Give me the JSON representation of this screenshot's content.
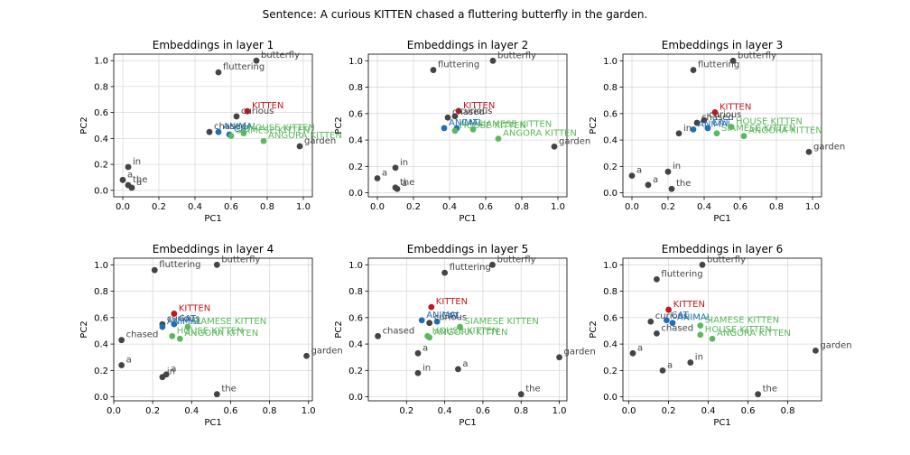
{
  "suptitle": "Sentence: A curious KITTEN chased a fluttering butterfly in the garden.",
  "colors": {
    "word": "#444444",
    "kitten": "#c4161c",
    "animal": "#1f6fb4",
    "breed": "#5cb85c"
  },
  "chart_data": [
    {
      "type": "scatter",
      "title": "Embeddings in layer 1",
      "xlabel": "PC1",
      "ylabel": "PC2",
      "xlim": [
        -0.05,
        1.05
      ],
      "ylim": [
        -0.05,
        1.05
      ],
      "xticks": [
        "0.0",
        "0.2",
        "0.4",
        "0.6",
        "0.8",
        "1.0"
      ],
      "xtick_values": [
        0,
        0.2,
        0.4,
        0.6,
        0.8,
        1.0
      ],
      "yticks": [
        "0.0",
        "0.2",
        "0.4",
        "0.6",
        "0.8",
        "1.0"
      ],
      "ytick_values": [
        0,
        0.2,
        0.4,
        0.6,
        0.8,
        1.0
      ],
      "grid": true,
      "points": [
        {
          "label": "fluttering",
          "x": 0.53,
          "y": 0.91,
          "group": "word"
        },
        {
          "label": "butterfly",
          "x": 0.74,
          "y": 1.0,
          "group": "word"
        },
        {
          "label": "KITTEN",
          "x": 0.69,
          "y": 0.61,
          "group": "kitten"
        },
        {
          "label": "curious",
          "x": 0.63,
          "y": 0.57,
          "group": "word"
        },
        {
          "label": "chased",
          "x": 0.48,
          "y": 0.45,
          "group": "word"
        },
        {
          "label": "ANIMAL",
          "x": 0.53,
          "y": 0.45,
          "group": "animal"
        },
        {
          "label": "CAT",
          "x": 0.59,
          "y": 0.43,
          "group": "animal"
        },
        {
          "label": "SIAMESE KITTEN",
          "x": 0.6,
          "y": 0.42,
          "group": "breed"
        },
        {
          "label": "HOUSE KITTEN",
          "x": 0.67,
          "y": 0.44,
          "group": "breed"
        },
        {
          "label": "ANGORA KITTEN",
          "x": 0.78,
          "y": 0.38,
          "group": "breed"
        },
        {
          "label": "garden",
          "x": 0.98,
          "y": 0.34,
          "group": "word"
        },
        {
          "label": "in",
          "x": 0.03,
          "y": 0.18,
          "group": "word"
        },
        {
          "label": "a",
          "x": 0.0,
          "y": 0.08,
          "group": "word"
        },
        {
          "label": "the",
          "x": 0.03,
          "y": 0.04,
          "group": "word"
        },
        {
          "label": "a",
          "x": 0.05,
          "y": 0.02,
          "group": "word"
        }
      ]
    },
    {
      "type": "scatter",
      "title": "Embeddings in layer 2",
      "xlabel": "PC1",
      "ylabel": "PC2",
      "xlim": [
        -0.05,
        1.05
      ],
      "ylim": [
        -0.03,
        1.05
      ],
      "xticks": [
        "0.0",
        "0.2",
        "0.4",
        "0.6",
        "0.8",
        "1.0"
      ],
      "xtick_values": [
        0,
        0.2,
        0.4,
        0.6,
        0.8,
        1.0
      ],
      "yticks": [
        "0.0",
        "0.2",
        "0.4",
        "0.6",
        "0.8",
        "1.0"
      ],
      "ytick_values": [
        0,
        0.2,
        0.4,
        0.6,
        0.8,
        1.0
      ],
      "grid": true,
      "points": [
        {
          "label": "fluttering",
          "x": 0.31,
          "y": 0.93,
          "group": "word"
        },
        {
          "label": "butterfly",
          "x": 0.64,
          "y": 1.0,
          "group": "word"
        },
        {
          "label": "KITTEN",
          "x": 0.45,
          "y": 0.62,
          "group": "kitten"
        },
        {
          "label": "curious",
          "x": 0.43,
          "y": 0.58,
          "group": "word"
        },
        {
          "label": "chased",
          "x": 0.39,
          "y": 0.57,
          "group": "word"
        },
        {
          "label": "ANIMAL",
          "x": 0.37,
          "y": 0.49,
          "group": "animal"
        },
        {
          "label": "CAT",
          "x": 0.44,
          "y": 0.49,
          "group": "animal"
        },
        {
          "label": "HOUSE KITTEN",
          "x": 0.43,
          "y": 0.47,
          "group": "breed"
        },
        {
          "label": "SIAMESE KITTEN",
          "x": 0.53,
          "y": 0.48,
          "group": "breed"
        },
        {
          "label": "ANGORA KITTEN",
          "x": 0.67,
          "y": 0.41,
          "group": "breed"
        },
        {
          "label": "garden",
          "x": 0.98,
          "y": 0.35,
          "group": "word"
        },
        {
          "label": "in",
          "x": 0.1,
          "y": 0.19,
          "group": "word"
        },
        {
          "label": "a",
          "x": 0.0,
          "y": 0.11,
          "group": "word"
        },
        {
          "label": "the",
          "x": 0.1,
          "y": 0.04,
          "group": "word"
        },
        {
          "label": "a",
          "x": 0.11,
          "y": 0.03,
          "group": "word"
        }
      ]
    },
    {
      "type": "scatter",
      "title": "Embeddings in layer 3",
      "xlabel": "PC1",
      "ylabel": "PC2",
      "xlim": [
        -0.05,
        1.05
      ],
      "ylim": [
        -0.03,
        1.05
      ],
      "xticks": [
        "0.0",
        "0.2",
        "0.4",
        "0.6",
        "0.8",
        "1.0"
      ],
      "xtick_values": [
        0,
        0.2,
        0.4,
        0.6,
        0.8,
        1.0
      ],
      "yticks": [
        "0.0",
        "0.2",
        "0.4",
        "0.6",
        "0.8",
        "1.0"
      ],
      "ytick_values": [
        0,
        0.2,
        0.4,
        0.6,
        0.8,
        1.0
      ],
      "grid": true,
      "points": [
        {
          "label": "fluttering",
          "x": 0.34,
          "y": 0.93,
          "group": "word"
        },
        {
          "label": "butterfly",
          "x": 0.56,
          "y": 1.0,
          "group": "word"
        },
        {
          "label": "KITTEN",
          "x": 0.46,
          "y": 0.61,
          "group": "kitten"
        },
        {
          "label": "curious",
          "x": 0.4,
          "y": 0.55,
          "group": "word"
        },
        {
          "label": "chased",
          "x": 0.36,
          "y": 0.53,
          "group": "word"
        },
        {
          "label": "ANIMAL",
          "x": 0.34,
          "y": 0.48,
          "group": "animal"
        },
        {
          "label": "CAT",
          "x": 0.42,
          "y": 0.49,
          "group": "animal"
        },
        {
          "label": "SIAMESE KITTEN",
          "x": 0.47,
          "y": 0.45,
          "group": "breed"
        },
        {
          "label": "HOUSE KITTEN",
          "x": 0.55,
          "y": 0.5,
          "group": "breed"
        },
        {
          "label": "ANGORA KITTEN",
          "x": 0.62,
          "y": 0.43,
          "group": "breed"
        },
        {
          "label": "garden",
          "x": 0.98,
          "y": 0.31,
          "group": "word"
        },
        {
          "label": "in",
          "x": 0.26,
          "y": 0.45,
          "group": "word"
        },
        {
          "label": "a",
          "x": 0.0,
          "y": 0.13,
          "group": "word"
        },
        {
          "label": "a",
          "x": 0.09,
          "y": 0.06,
          "group": "word"
        },
        {
          "label": "in",
          "x": 0.2,
          "y": 0.16,
          "group": "word"
        },
        {
          "label": "the",
          "x": 0.22,
          "y": 0.03,
          "group": "word"
        }
      ]
    },
    {
      "type": "scatter",
      "title": "Embeddings in layer 4",
      "xlabel": "PC1",
      "ylabel": "PC2",
      "xlim": [
        0.0,
        1.02
      ],
      "ylim": [
        -0.03,
        1.05
      ],
      "xticks": [
        "0.0",
        "0.2",
        "0.4",
        "0.6",
        "0.8",
        "1.0"
      ],
      "xtick_values": [
        0,
        0.2,
        0.4,
        0.6,
        0.8,
        1.0
      ],
      "yticks": [
        "0.0",
        "0.2",
        "0.4",
        "0.6",
        "0.8",
        "1.0"
      ],
      "ytick_values": [
        0,
        0.2,
        0.4,
        0.6,
        0.8,
        1.0
      ],
      "grid": true,
      "points": [
        {
          "label": "fluttering",
          "x": 0.21,
          "y": 0.96,
          "group": "word"
        },
        {
          "label": "butterfly",
          "x": 0.53,
          "y": 1.0,
          "group": "word"
        },
        {
          "label": "KITTEN",
          "x": 0.31,
          "y": 0.63,
          "group": "kitten"
        },
        {
          "label": "chased",
          "x": 0.04,
          "y": 0.43,
          "group": "word"
        },
        {
          "label": "curious",
          "x": 0.25,
          "y": 0.55,
          "group": "word"
        },
        {
          "label": "ANIMAL",
          "x": 0.25,
          "y": 0.53,
          "group": "animal"
        },
        {
          "label": "CAT",
          "x": 0.31,
          "y": 0.55,
          "group": "animal"
        },
        {
          "label": "SIAMESE KITTEN",
          "x": 0.38,
          "y": 0.53,
          "group": "breed"
        },
        {
          "label": "HOUSE KITTEN",
          "x": 0.3,
          "y": 0.46,
          "group": "breed"
        },
        {
          "label": "ANGORA KITTEN",
          "x": 0.34,
          "y": 0.44,
          "group": "breed"
        },
        {
          "label": "garden",
          "x": 0.99,
          "y": 0.31,
          "group": "word"
        },
        {
          "label": "a",
          "x": 0.04,
          "y": 0.24,
          "group": "word"
        },
        {
          "label": "in",
          "x": 0.25,
          "y": 0.15,
          "group": "word"
        },
        {
          "label": "a",
          "x": 0.27,
          "y": 0.17,
          "group": "word"
        },
        {
          "label": "the",
          "x": 0.53,
          "y": 0.02,
          "group": "word"
        }
      ]
    },
    {
      "type": "scatter",
      "title": "Embeddings in layer 5",
      "xlabel": "PC1",
      "ylabel": "PC2",
      "xlim": [
        0.0,
        1.04
      ],
      "ylim": [
        -0.03,
        1.05
      ],
      "xticks": [
        "0.2",
        "0.4",
        "0.6",
        "0.8",
        "1.0"
      ],
      "xtick_values": [
        0.2,
        0.4,
        0.6,
        0.8,
        1.0
      ],
      "yticks": [
        "0.0",
        "0.2",
        "0.4",
        "0.6",
        "0.8",
        "1.0"
      ],
      "ytick_values": [
        0,
        0.2,
        0.4,
        0.6,
        0.8,
        1.0
      ],
      "grid": true,
      "points": [
        {
          "label": "fluttering",
          "x": 0.4,
          "y": 0.94,
          "group": "word"
        },
        {
          "label": "butterfly",
          "x": 0.65,
          "y": 1.0,
          "group": "word"
        },
        {
          "label": "KITTEN",
          "x": 0.33,
          "y": 0.68,
          "group": "kitten"
        },
        {
          "label": "chased",
          "x": 0.05,
          "y": 0.46,
          "group": "word"
        },
        {
          "label": "ANIMAL",
          "x": 0.28,
          "y": 0.58,
          "group": "animal"
        },
        {
          "label": "CAT",
          "x": 0.36,
          "y": 0.57,
          "group": "animal"
        },
        {
          "label": "curious",
          "x": 0.32,
          "y": 0.56,
          "group": "word"
        },
        {
          "label": "SIAMESE KITTEN",
          "x": 0.48,
          "y": 0.53,
          "group": "breed"
        },
        {
          "label": "HOUSE KITTEN",
          "x": 0.31,
          "y": 0.46,
          "group": "breed"
        },
        {
          "label": "ANGORA KITTEN",
          "x": 0.32,
          "y": 0.45,
          "group": "breed"
        },
        {
          "label": "garden",
          "x": 1.0,
          "y": 0.3,
          "group": "word"
        },
        {
          "label": "a",
          "x": 0.26,
          "y": 0.33,
          "group": "word"
        },
        {
          "label": "in",
          "x": 0.26,
          "y": 0.18,
          "group": "word"
        },
        {
          "label": "a",
          "x": 0.47,
          "y": 0.21,
          "group": "word"
        },
        {
          "label": "the",
          "x": 0.8,
          "y": 0.02,
          "group": "word"
        }
      ]
    },
    {
      "type": "scatter",
      "title": "Embeddings in layer 6",
      "xlabel": "PC1",
      "ylabel": "PC2",
      "xlim": [
        -0.03,
        0.97
      ],
      "ylim": [
        -0.03,
        1.05
      ],
      "xticks": [
        "0.0",
        "0.2",
        "0.4",
        "0.6",
        "0.8"
      ],
      "xtick_values": [
        0,
        0.2,
        0.4,
        0.6,
        0.8
      ],
      "yticks": [
        "0.0",
        "0.2",
        "0.4",
        "0.6",
        "0.8",
        "1.0"
      ],
      "ytick_values": [
        0,
        0.2,
        0.4,
        0.6,
        0.8,
        1.0
      ],
      "grid": true,
      "points": [
        {
          "label": "fluttering",
          "x": 0.14,
          "y": 0.89,
          "group": "word"
        },
        {
          "label": "butterfly",
          "x": 0.37,
          "y": 1.0,
          "group": "word"
        },
        {
          "label": "KITTEN",
          "x": 0.2,
          "y": 0.66,
          "group": "kitten"
        },
        {
          "label": "curious",
          "x": 0.11,
          "y": 0.57,
          "group": "word"
        },
        {
          "label": "chased",
          "x": 0.14,
          "y": 0.48,
          "group": "word"
        },
        {
          "label": "CAT",
          "x": 0.19,
          "y": 0.58,
          "group": "animal"
        },
        {
          "label": "ANIMAL",
          "x": 0.22,
          "y": 0.56,
          "group": "animal"
        },
        {
          "label": "SIAMESE KITTEN",
          "x": 0.36,
          "y": 0.54,
          "group": "breed"
        },
        {
          "label": "HOUSE KITTEN",
          "x": 0.36,
          "y": 0.47,
          "group": "breed"
        },
        {
          "label": "ANGORA KITTEN",
          "x": 0.42,
          "y": 0.44,
          "group": "breed"
        },
        {
          "label": "garden",
          "x": 0.94,
          "y": 0.35,
          "group": "word"
        },
        {
          "label": "a",
          "x": 0.02,
          "y": 0.33,
          "group": "word"
        },
        {
          "label": "in",
          "x": 0.31,
          "y": 0.26,
          "group": "word"
        },
        {
          "label": "a",
          "x": 0.17,
          "y": 0.2,
          "group": "word"
        },
        {
          "label": "the",
          "x": 0.65,
          "y": 0.02,
          "group": "word"
        }
      ]
    }
  ]
}
